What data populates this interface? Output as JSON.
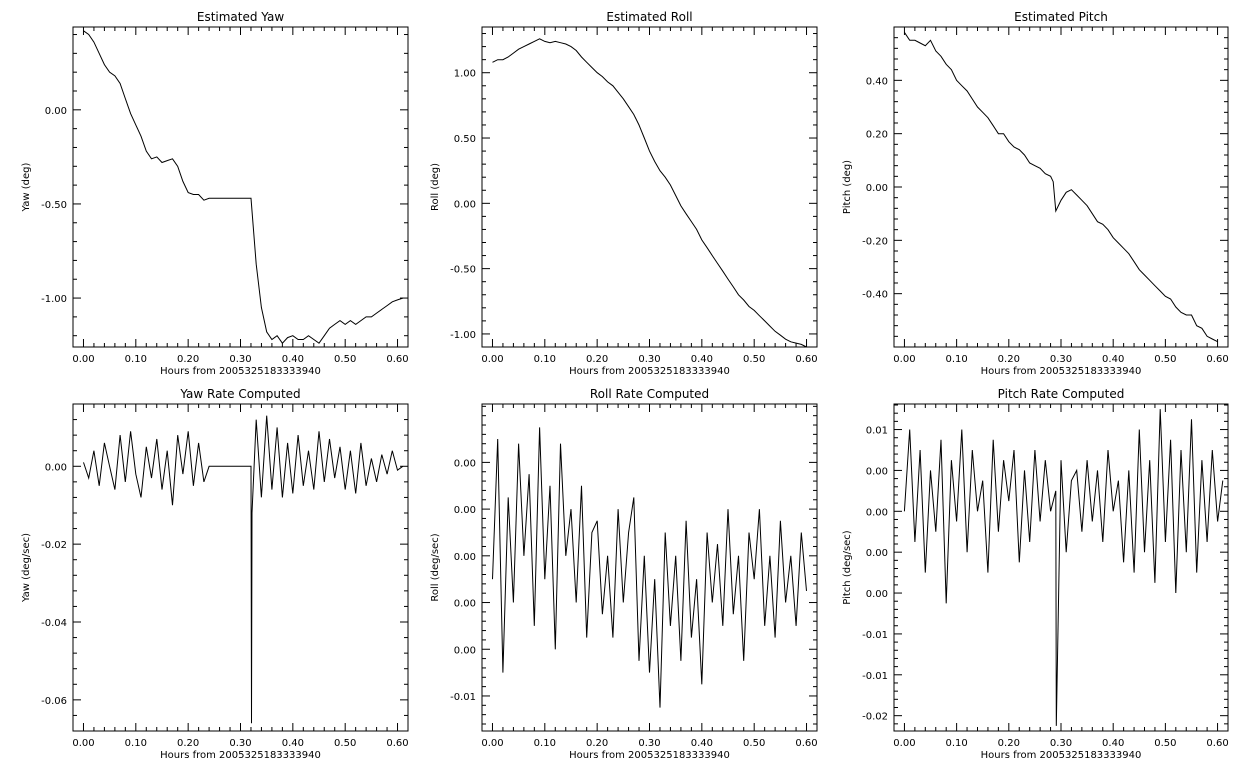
{
  "chart_data": [
    {
      "type": "line",
      "title": "Estimated Yaw",
      "xlabel": "Hours from 2005325183333940",
      "ylabel": "Yaw (deg)",
      "xlim": [
        -0.02,
        0.62
      ],
      "ylim": [
        -1.26,
        0.44
      ],
      "xticks": [
        0.0,
        0.1,
        0.2,
        0.3,
        0.4,
        0.5,
        0.6
      ],
      "xtick_labels": [
        "0.00",
        "0.10",
        "0.20",
        "0.30",
        "0.40",
        "0.50",
        "0.60"
      ],
      "yticks": [
        -1.0,
        -0.5,
        0.0
      ],
      "ytick_labels": [
        "-1.00",
        "-0.50",
        "0.00"
      ],
      "series": [
        {
          "x": [
            0.0,
            0.01,
            0.02,
            0.03,
            0.04,
            0.05,
            0.06,
            0.07,
            0.08,
            0.09,
            0.1,
            0.11,
            0.12,
            0.13,
            0.14,
            0.15,
            0.16,
            0.17,
            0.18,
            0.19,
            0.2,
            0.21,
            0.22,
            0.23,
            0.24,
            0.25,
            0.26,
            0.27,
            0.28,
            0.29,
            0.3,
            0.31,
            0.32,
            0.33,
            0.34,
            0.35,
            0.36,
            0.37,
            0.38,
            0.39,
            0.4,
            0.41,
            0.42,
            0.43,
            0.44,
            0.45,
            0.46,
            0.47,
            0.48,
            0.49,
            0.5,
            0.51,
            0.52,
            0.53,
            0.54,
            0.55,
            0.56,
            0.57,
            0.58,
            0.59,
            0.6,
            0.61
          ],
          "values": [
            0.42,
            0.4,
            0.36,
            0.3,
            0.24,
            0.2,
            0.18,
            0.14,
            0.06,
            -0.02,
            -0.08,
            -0.14,
            -0.22,
            -0.26,
            -0.25,
            -0.28,
            -0.27,
            -0.26,
            -0.3,
            -0.38,
            -0.44,
            -0.45,
            -0.45,
            -0.48,
            -0.47,
            -0.47,
            -0.47,
            -0.47,
            -0.47,
            -0.47,
            -0.47,
            -0.47,
            -0.47,
            -0.82,
            -1.05,
            -1.18,
            -1.22,
            -1.2,
            -1.24,
            -1.21,
            -1.2,
            -1.22,
            -1.22,
            -1.2,
            -1.22,
            -1.24,
            -1.2,
            -1.16,
            -1.14,
            -1.12,
            -1.14,
            -1.12,
            -1.14,
            -1.12,
            -1.1,
            -1.1,
            -1.08,
            -1.06,
            -1.04,
            -1.02,
            -1.01,
            -1.0
          ]
        }
      ]
    },
    {
      "type": "line",
      "title": "Estimated Roll",
      "xlabel": "Hours from 2005325183333940",
      "ylabel": "Roll (deg)",
      "xlim": [
        -0.02,
        0.62
      ],
      "ylim": [
        -1.1,
        1.35
      ],
      "xticks": [
        0.0,
        0.1,
        0.2,
        0.3,
        0.4,
        0.5,
        0.6
      ],
      "xtick_labels": [
        "0.00",
        "0.10",
        "0.20",
        "0.30",
        "0.40",
        "0.50",
        "0.60"
      ],
      "yticks": [
        -1.0,
        -0.5,
        0.0,
        0.5,
        1.0
      ],
      "ytick_labels": [
        "-1.00",
        "-0.50",
        "0.00",
        "0.50",
        "1.00"
      ],
      "series": [
        {
          "x": [
            0.0,
            0.01,
            0.02,
            0.03,
            0.04,
            0.05,
            0.06,
            0.07,
            0.08,
            0.09,
            0.1,
            0.11,
            0.12,
            0.13,
            0.14,
            0.15,
            0.16,
            0.17,
            0.18,
            0.19,
            0.2,
            0.21,
            0.22,
            0.23,
            0.24,
            0.25,
            0.26,
            0.27,
            0.28,
            0.29,
            0.3,
            0.31,
            0.32,
            0.33,
            0.34,
            0.35,
            0.36,
            0.37,
            0.38,
            0.39,
            0.4,
            0.41,
            0.42,
            0.43,
            0.44,
            0.45,
            0.46,
            0.47,
            0.48,
            0.49,
            0.5,
            0.51,
            0.52,
            0.53,
            0.54,
            0.55,
            0.56,
            0.57,
            0.58,
            0.59,
            0.6
          ],
          "values": [
            1.08,
            1.1,
            1.1,
            1.12,
            1.15,
            1.18,
            1.2,
            1.22,
            1.24,
            1.26,
            1.24,
            1.23,
            1.24,
            1.23,
            1.22,
            1.2,
            1.17,
            1.12,
            1.08,
            1.04,
            1.0,
            0.97,
            0.93,
            0.9,
            0.85,
            0.8,
            0.74,
            0.68,
            0.6,
            0.5,
            0.4,
            0.32,
            0.25,
            0.2,
            0.14,
            0.06,
            -0.02,
            -0.08,
            -0.14,
            -0.2,
            -0.28,
            -0.34,
            -0.4,
            -0.46,
            -0.52,
            -0.58,
            -0.64,
            -0.7,
            -0.74,
            -0.79,
            -0.82,
            -0.86,
            -0.9,
            -0.94,
            -0.98,
            -1.01,
            -1.04,
            -1.06,
            -1.07,
            -1.08,
            -1.1
          ]
        }
      ]
    },
    {
      "type": "line",
      "title": "Estimated Pitch",
      "xlabel": "Hours from 2005325183333940",
      "ylabel": "Pitch (deg)",
      "xlim": [
        -0.02,
        0.62
      ],
      "ylim": [
        -0.6,
        0.6
      ],
      "xticks": [
        0.0,
        0.1,
        0.2,
        0.3,
        0.4,
        0.5,
        0.6
      ],
      "xtick_labels": [
        "0.00",
        "0.10",
        "0.20",
        "0.30",
        "0.40",
        "0.50",
        "0.60"
      ],
      "yticks": [
        -0.4,
        -0.2,
        0.0,
        0.2,
        0.4
      ],
      "ytick_labels": [
        "-0.40",
        "-0.20",
        "0.00",
        "0.20",
        "0.40"
      ],
      "series": [
        {
          "x": [
            0.0,
            0.01,
            0.02,
            0.03,
            0.04,
            0.05,
            0.06,
            0.07,
            0.08,
            0.09,
            0.1,
            0.11,
            0.12,
            0.13,
            0.14,
            0.15,
            0.16,
            0.17,
            0.18,
            0.19,
            0.2,
            0.21,
            0.22,
            0.23,
            0.24,
            0.25,
            0.26,
            0.27,
            0.28,
            0.285,
            0.29,
            0.3,
            0.31,
            0.32,
            0.33,
            0.34,
            0.35,
            0.36,
            0.37,
            0.38,
            0.39,
            0.4,
            0.41,
            0.42,
            0.43,
            0.44,
            0.45,
            0.46,
            0.47,
            0.48,
            0.49,
            0.5,
            0.51,
            0.52,
            0.53,
            0.54,
            0.55,
            0.56,
            0.57,
            0.58,
            0.59,
            0.6
          ],
          "values": [
            0.58,
            0.55,
            0.55,
            0.54,
            0.53,
            0.55,
            0.51,
            0.49,
            0.46,
            0.44,
            0.4,
            0.38,
            0.36,
            0.33,
            0.3,
            0.28,
            0.26,
            0.23,
            0.2,
            0.2,
            0.17,
            0.15,
            0.14,
            0.12,
            0.09,
            0.08,
            0.07,
            0.05,
            0.04,
            0.02,
            -0.09,
            -0.05,
            -0.02,
            -0.01,
            -0.03,
            -0.05,
            -0.07,
            -0.1,
            -0.13,
            -0.14,
            -0.16,
            -0.19,
            -0.21,
            -0.23,
            -0.25,
            -0.28,
            -0.31,
            -0.33,
            -0.35,
            -0.37,
            -0.39,
            -0.41,
            -0.42,
            -0.45,
            -0.47,
            -0.48,
            -0.48,
            -0.52,
            -0.53,
            -0.56,
            -0.57,
            -0.58
          ]
        }
      ]
    },
    {
      "type": "line",
      "title": "Yaw Rate Computed",
      "xlabel": "Hours from 2005325183333940",
      "ylabel": "Yaw (deg/sec)",
      "xlim": [
        -0.02,
        0.62
      ],
      "ylim": [
        -0.068,
        0.016
      ],
      "xticks": [
        0.0,
        0.1,
        0.2,
        0.3,
        0.4,
        0.5,
        0.6
      ],
      "xtick_labels": [
        "0.00",
        "0.10",
        "0.20",
        "0.30",
        "0.40",
        "0.50",
        "0.60"
      ],
      "yticks": [
        -0.06,
        -0.04,
        -0.02,
        0.0
      ],
      "ytick_labels": [
        "-0.06",
        "-0.04",
        "-0.02",
        "0.00"
      ],
      "series": [
        {
          "x": [
            0.0,
            0.01,
            0.02,
            0.03,
            0.04,
            0.05,
            0.06,
            0.07,
            0.08,
            0.09,
            0.1,
            0.11,
            0.12,
            0.13,
            0.14,
            0.15,
            0.16,
            0.17,
            0.18,
            0.19,
            0.2,
            0.21,
            0.22,
            0.23,
            0.24,
            0.25,
            0.26,
            0.27,
            0.28,
            0.29,
            0.3,
            0.31,
            0.32,
            0.321,
            0.322,
            0.33,
            0.34,
            0.35,
            0.36,
            0.37,
            0.38,
            0.39,
            0.4,
            0.41,
            0.42,
            0.43,
            0.44,
            0.45,
            0.46,
            0.47,
            0.48,
            0.49,
            0.5,
            0.51,
            0.52,
            0.53,
            0.54,
            0.55,
            0.56,
            0.57,
            0.58,
            0.59,
            0.6,
            0.61
          ],
          "values": [
            0.001,
            -0.003,
            0.004,
            -0.005,
            0.006,
            0.0,
            -0.006,
            0.008,
            -0.004,
            0.009,
            -0.002,
            -0.008,
            0.005,
            -0.003,
            0.007,
            -0.006,
            0.004,
            -0.01,
            0.008,
            -0.002,
            0.009,
            -0.005,
            0.006,
            -0.004,
            0.0,
            0.0,
            0.0,
            0.0,
            0.0,
            0.0,
            0.0,
            0.0,
            0.0,
            -0.066,
            -0.012,
            0.012,
            -0.008,
            0.013,
            -0.006,
            0.01,
            -0.008,
            0.006,
            -0.007,
            0.008,
            -0.005,
            0.004,
            -0.006,
            0.009,
            -0.004,
            0.007,
            -0.003,
            0.005,
            -0.006,
            0.004,
            -0.007,
            0.006,
            -0.005,
            0.002,
            -0.004,
            0.003,
            -0.002,
            0.004,
            -0.001,
            0.0
          ]
        }
      ]
    },
    {
      "type": "line",
      "title": "Roll Rate Computed",
      "xlabel": "Hours from 2005325183333940",
      "ylabel": "Roll (deg/sec)",
      "xlim": [
        -0.02,
        0.62
      ],
      "ylim": [
        -0.0115,
        0.0025
      ],
      "xticks": [
        0.0,
        0.1,
        0.2,
        0.3,
        0.4,
        0.5,
        0.6
      ],
      "xtick_labels": [
        "0.00",
        "0.10",
        "0.20",
        "0.30",
        "0.40",
        "0.50",
        "0.60"
      ],
      "yticks": [
        -0.01,
        -0.008,
        -0.006,
        -0.004,
        -0.002,
        0.0
      ],
      "ytick_labels": [
        "-0.01",
        "0.00",
        "0.00",
        "0.00",
        "0.00",
        "0.00"
      ],
      "series": [
        {
          "x": [
            0.0,
            0.01,
            0.02,
            0.03,
            0.04,
            0.05,
            0.06,
            0.07,
            0.08,
            0.09,
            0.1,
            0.11,
            0.12,
            0.13,
            0.14,
            0.15,
            0.16,
            0.17,
            0.18,
            0.19,
            0.2,
            0.21,
            0.22,
            0.23,
            0.24,
            0.25,
            0.26,
            0.27,
            0.28,
            0.29,
            0.3,
            0.31,
            0.32,
            0.33,
            0.34,
            0.35,
            0.36,
            0.37,
            0.38,
            0.39,
            0.4,
            0.41,
            0.42,
            0.43,
            0.44,
            0.45,
            0.46,
            0.47,
            0.48,
            0.49,
            0.5,
            0.51,
            0.52,
            0.53,
            0.54,
            0.55,
            0.56,
            0.57,
            0.58,
            0.59,
            0.6
          ],
          "values": [
            -0.005,
            0.001,
            -0.009,
            -0.0015,
            -0.006,
            0.0008,
            -0.004,
            -0.0005,
            -0.007,
            0.0015,
            -0.005,
            -0.001,
            -0.008,
            0.0008,
            -0.004,
            -0.002,
            -0.006,
            -0.001,
            -0.0075,
            -0.003,
            -0.0025,
            -0.0065,
            -0.004,
            -0.0075,
            -0.002,
            -0.006,
            -0.003,
            -0.0015,
            -0.0085,
            -0.004,
            -0.009,
            -0.005,
            -0.0105,
            -0.003,
            -0.007,
            -0.004,
            -0.0085,
            -0.0025,
            -0.0075,
            -0.005,
            -0.0095,
            -0.003,
            -0.006,
            -0.0035,
            -0.007,
            -0.002,
            -0.0065,
            -0.004,
            -0.0085,
            -0.003,
            -0.005,
            -0.002,
            -0.007,
            -0.004,
            -0.0075,
            -0.0025,
            -0.006,
            -0.004,
            -0.007,
            -0.003,
            -0.0055
          ]
        }
      ]
    },
    {
      "type": "line",
      "title": "Pitch Rate Computed",
      "xlabel": "Hours from 2005325183333940",
      "ylabel": "Pitch (deg/sec)",
      "xlim": [
        -0.02,
        0.62
      ],
      "ylim": [
        -0.0215,
        0.0105
      ],
      "xticks": [
        0.0,
        0.1,
        0.2,
        0.3,
        0.4,
        0.5,
        0.6
      ],
      "xtick_labels": [
        "0.00",
        "0.10",
        "0.20",
        "0.30",
        "0.40",
        "0.50",
        "0.60"
      ],
      "yticks": [
        -0.02,
        -0.016,
        -0.012,
        -0.008,
        -0.004,
        0.0,
        0.004,
        0.008
      ],
      "ytick_labels": [
        "-0.02",
        "-0.01",
        "-0.01",
        "0.00",
        "0.00",
        "0.00",
        "0.00",
        "0.01"
      ],
      "series": [
        {
          "x": [
            0.0,
            0.01,
            0.02,
            0.03,
            0.04,
            0.05,
            0.06,
            0.07,
            0.08,
            0.09,
            0.1,
            0.11,
            0.12,
            0.13,
            0.14,
            0.15,
            0.16,
            0.17,
            0.18,
            0.19,
            0.2,
            0.21,
            0.22,
            0.23,
            0.24,
            0.25,
            0.26,
            0.27,
            0.28,
            0.29,
            0.291,
            0.3,
            0.31,
            0.32,
            0.33,
            0.34,
            0.35,
            0.36,
            0.37,
            0.38,
            0.39,
            0.4,
            0.41,
            0.42,
            0.43,
            0.44,
            0.45,
            0.46,
            0.47,
            0.48,
            0.49,
            0.5,
            0.51,
            0.52,
            0.53,
            0.54,
            0.55,
            0.56,
            0.57,
            0.58,
            0.59,
            0.6,
            0.61
          ],
          "values": [
            0.0,
            0.008,
            -0.003,
            0.006,
            -0.006,
            0.004,
            -0.002,
            0.007,
            -0.009,
            0.005,
            -0.001,
            0.008,
            -0.004,
            0.006,
            0.0,
            0.003,
            -0.006,
            0.007,
            -0.002,
            0.005,
            0.001,
            0.006,
            -0.005,
            0.004,
            -0.003,
            0.006,
            -0.001,
            0.005,
            0.0,
            0.002,
            -0.021,
            0.005,
            -0.004,
            0.003,
            0.004,
            -0.002,
            0.005,
            -0.001,
            0.004,
            -0.003,
            0.006,
            0.0,
            0.003,
            -0.005,
            0.004,
            -0.006,
            0.008,
            -0.004,
            0.005,
            -0.007,
            0.01,
            -0.003,
            0.007,
            -0.008,
            0.006,
            -0.004,
            0.009,
            -0.006,
            0.005,
            -0.003,
            0.006,
            -0.001,
            0.003
          ]
        }
      ]
    }
  ]
}
